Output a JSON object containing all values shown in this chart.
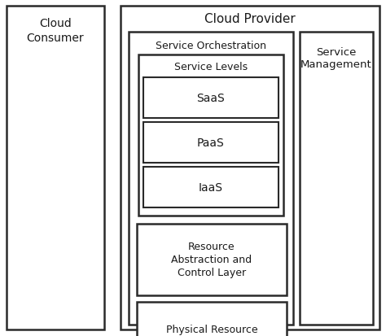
{
  "bg_color": "#ffffff",
  "box_color": "#ffffff",
  "border_color": "#2a2a2a",
  "text_color": "#1a1a1a",
  "cloud_consumer_label": "Cloud\nConsumer",
  "cloud_provider_label": "Cloud Provider",
  "service_orchestration_label": "Service Orchestration",
  "service_management_label": "Service\nManagement",
  "service_levels_label": "Service Levels",
  "saas_label": "SaaS",
  "paas_label": "PaaS",
  "iaas_label": "IaaS",
  "resource_layer_label": "Resource\nAbstraction and\nControl Layer",
  "physical_layer_label": "Physical Resource\nLayer",
  "figsize": [
    4.74,
    4.14
  ],
  "dpi": 100
}
